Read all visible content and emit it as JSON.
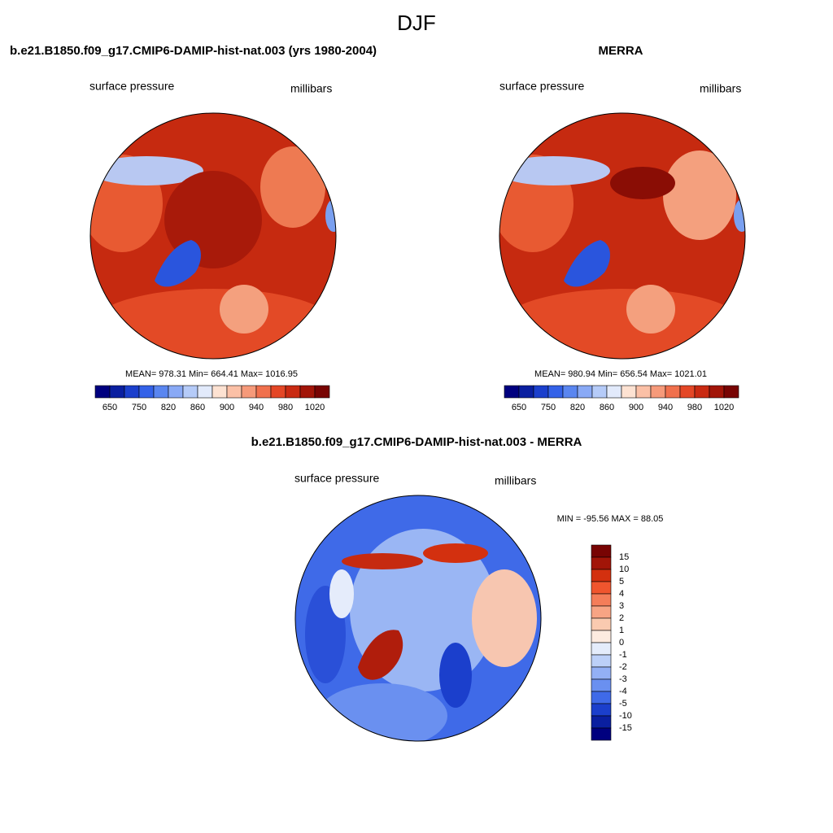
{
  "title": "DJF",
  "panels": [
    {
      "title": "b.e21.B1850.f09_g17.CMIP6-DAMIP-hist-nat.003 (yrs 1980-2004)",
      "left_label": "surface pressure",
      "right_label": "millibars",
      "stats": "MEAN= 978.31  Min= 664.41  Max= 1016.95",
      "colorbar": {
        "labels": [
          "650",
          "750",
          "820",
          "860",
          "900",
          "940",
          "980",
          "1020"
        ],
        "colors": [
          "#00007f",
          "#0a1fa0",
          "#1b3fcc",
          "#3462e8",
          "#5a86f0",
          "#89a9f5",
          "#b5cbf8",
          "#e2eafb",
          "#fde2d2",
          "#fbc0a6",
          "#f69a7a",
          "#f0704d",
          "#e44726",
          "#c92a12",
          "#a21508",
          "#780403"
        ]
      }
    },
    {
      "title": "MERRA",
      "left_label": "surface pressure",
      "right_label": "millibars",
      "stats": "MEAN= 980.94  Min= 656.54  Max= 1021.01",
      "colorbar": {
        "labels": [
          "650",
          "750",
          "820",
          "860",
          "900",
          "940",
          "980",
          "1020"
        ],
        "colors": [
          "#00007f",
          "#0a1fa0",
          "#1b3fcc",
          "#3462e8",
          "#5a86f0",
          "#89a9f5",
          "#b5cbf8",
          "#e2eafb",
          "#fde2d2",
          "#fbc0a6",
          "#f69a7a",
          "#f0704d",
          "#e44726",
          "#c92a12",
          "#a21508",
          "#780403"
        ]
      }
    }
  ],
  "difference": {
    "title": "b.e21.B1850.f09_g17.CMIP6-DAMIP-hist-nat.003 - MERRA",
    "left_label": "surface pressure",
    "right_label": "millibars",
    "stats": "MIN = -95.56 MAX =  88.05",
    "colorbar": {
      "labels": [
        "15",
        "10",
        "5",
        "4",
        "3",
        "2",
        "1",
        "0",
        "-1",
        "-2",
        "-3",
        "-4",
        "-5",
        "-10",
        "-15"
      ],
      "colors": [
        "#780403",
        "#a21508",
        "#d3300f",
        "#f0552e",
        "#f47d59",
        "#f7a484",
        "#facab0",
        "#fdebe0",
        "#e4ecfb",
        "#bcd0f8",
        "#93b0f5",
        "#6a90f0",
        "#3f6ae8",
        "#1b3fcc",
        "#0a1fa0",
        "#00007f"
      ]
    }
  }
}
